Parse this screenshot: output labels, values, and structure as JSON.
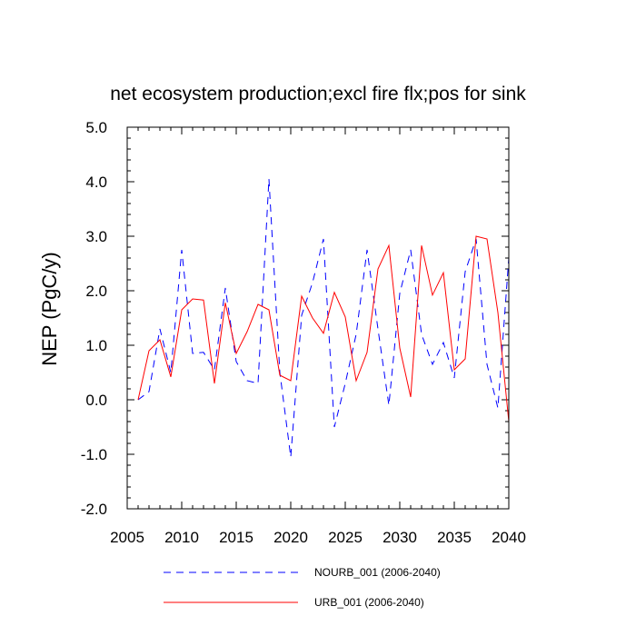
{
  "chart_data": {
    "type": "line",
    "title": "net ecosystem production;excl fire flx;pos for sink",
    "xlabel": "",
    "ylabel": "NEP  (PgC/y)",
    "xlim": [
      2005,
      2040
    ],
    "ylim": [
      -2.0,
      5.0
    ],
    "x_ticks": [
      2005,
      2010,
      2015,
      2020,
      2025,
      2030,
      2035,
      2040
    ],
    "x_tick_labels": [
      "2005",
      "2010",
      "2015",
      "2020",
      "2025",
      "2030",
      "2035",
      "2040"
    ],
    "y_ticks": [
      -2.0,
      -1.0,
      0.0,
      1.0,
      2.0,
      3.0,
      4.0,
      5.0
    ],
    "y_tick_labels": [
      "-2.0",
      "-1.0",
      "0.0",
      "1.0",
      "2.0",
      "3.0",
      "4.0",
      "5.0"
    ],
    "x": [
      2006,
      2007,
      2008,
      2009,
      2010,
      2011,
      2012,
      2013,
      2014,
      2015,
      2016,
      2017,
      2018,
      2019,
      2020,
      2021,
      2022,
      2023,
      2024,
      2025,
      2026,
      2027,
      2028,
      2029,
      2030,
      2031,
      2032,
      2033,
      2034,
      2035,
      2036,
      2037,
      2038,
      2039,
      2040
    ],
    "series": [
      {
        "name": "NOURB_001 (2006-2040)",
        "color": "#0000ff",
        "style": "dashed",
        "values": [
          0.0,
          0.15,
          1.3,
          0.5,
          2.75,
          0.85,
          0.87,
          0.55,
          2.05,
          0.7,
          0.35,
          0.3,
          4.05,
          0.5,
          -1.05,
          1.55,
          2.15,
          2.95,
          -0.5,
          0.3,
          1.2,
          2.75,
          1.3,
          -0.1,
          1.95,
          2.75,
          1.2,
          0.65,
          1.05,
          0.4,
          2.35,
          2.95,
          0.65,
          -0.15,
          2.6
        ]
      },
      {
        "name": "URB_001 (2006-2040)",
        "color": "#ff0000",
        "style": "solid",
        "values": [
          0.0,
          0.9,
          1.1,
          0.42,
          1.65,
          1.85,
          1.83,
          0.3,
          1.78,
          0.85,
          1.25,
          1.75,
          1.65,
          0.45,
          0.35,
          1.9,
          1.5,
          1.22,
          1.97,
          1.52,
          0.35,
          0.87,
          2.4,
          2.83,
          0.95,
          0.05,
          2.83,
          1.92,
          2.33,
          0.55,
          0.75,
          3.0,
          2.95,
          1.6,
          -0.4
        ]
      }
    ]
  }
}
